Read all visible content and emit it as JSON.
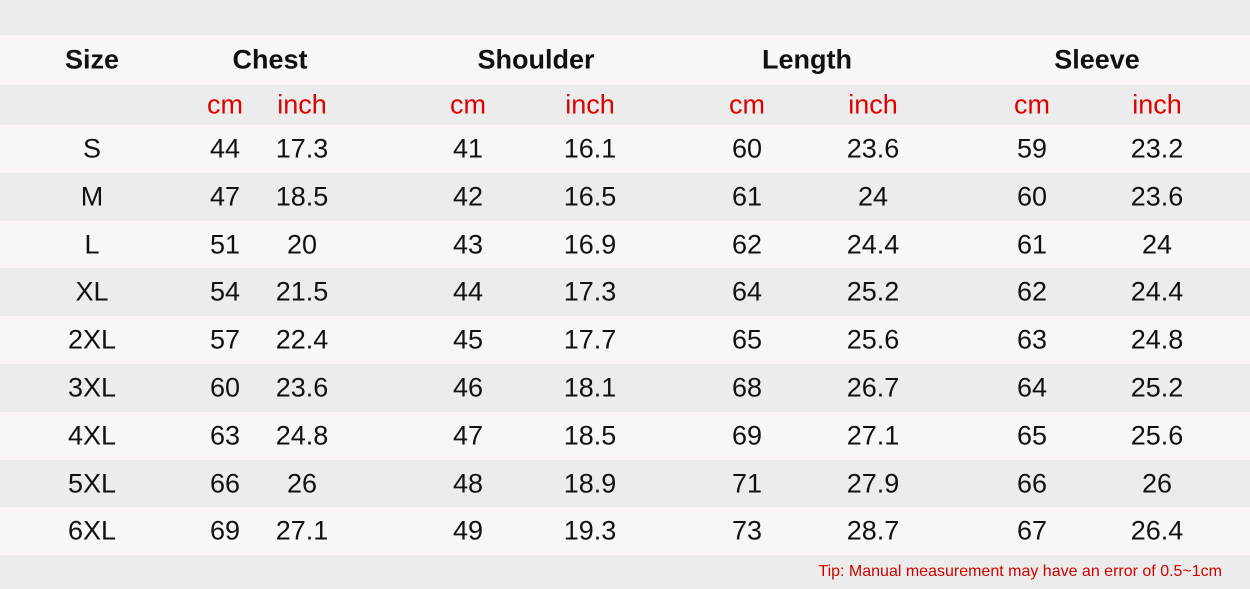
{
  "table": {
    "headers": [
      "Size",
      "Chest",
      "Shoulder",
      "Length",
      "Sleeve"
    ],
    "units": [
      "cm",
      "inch",
      "cm",
      "inch",
      "cm",
      "inch",
      "cm",
      "inch"
    ],
    "rows": [
      [
        "S",
        44,
        17.3,
        41,
        16.1,
        60,
        23.6,
        59,
        23.2
      ],
      [
        "M",
        47,
        18.5,
        42,
        16.5,
        61,
        24,
        60,
        23.6
      ],
      [
        "L",
        51,
        20,
        43,
        16.9,
        62,
        24.4,
        61,
        24
      ],
      [
        "XL",
        54,
        21.5,
        44,
        17.3,
        64,
        25.2,
        62,
        24.4
      ],
      [
        "2XL",
        57,
        22.4,
        45,
        17.7,
        65,
        25.6,
        63,
        24.8
      ],
      [
        "3XL",
        60,
        23.6,
        46,
        18.1,
        68,
        26.7,
        64,
        25.2
      ],
      [
        "4XL",
        63,
        24.8,
        47,
        18.5,
        69,
        27.1,
        65,
        25.6
      ],
      [
        "5XL",
        66,
        26,
        48,
        18.9,
        71,
        27.9,
        66,
        26
      ],
      [
        "6XL",
        69,
        27.1,
        49,
        19.3,
        73,
        28.7,
        67,
        26.4
      ]
    ]
  },
  "tip": "Tip: Manual measurement may have an error of 0.5~1cm"
}
